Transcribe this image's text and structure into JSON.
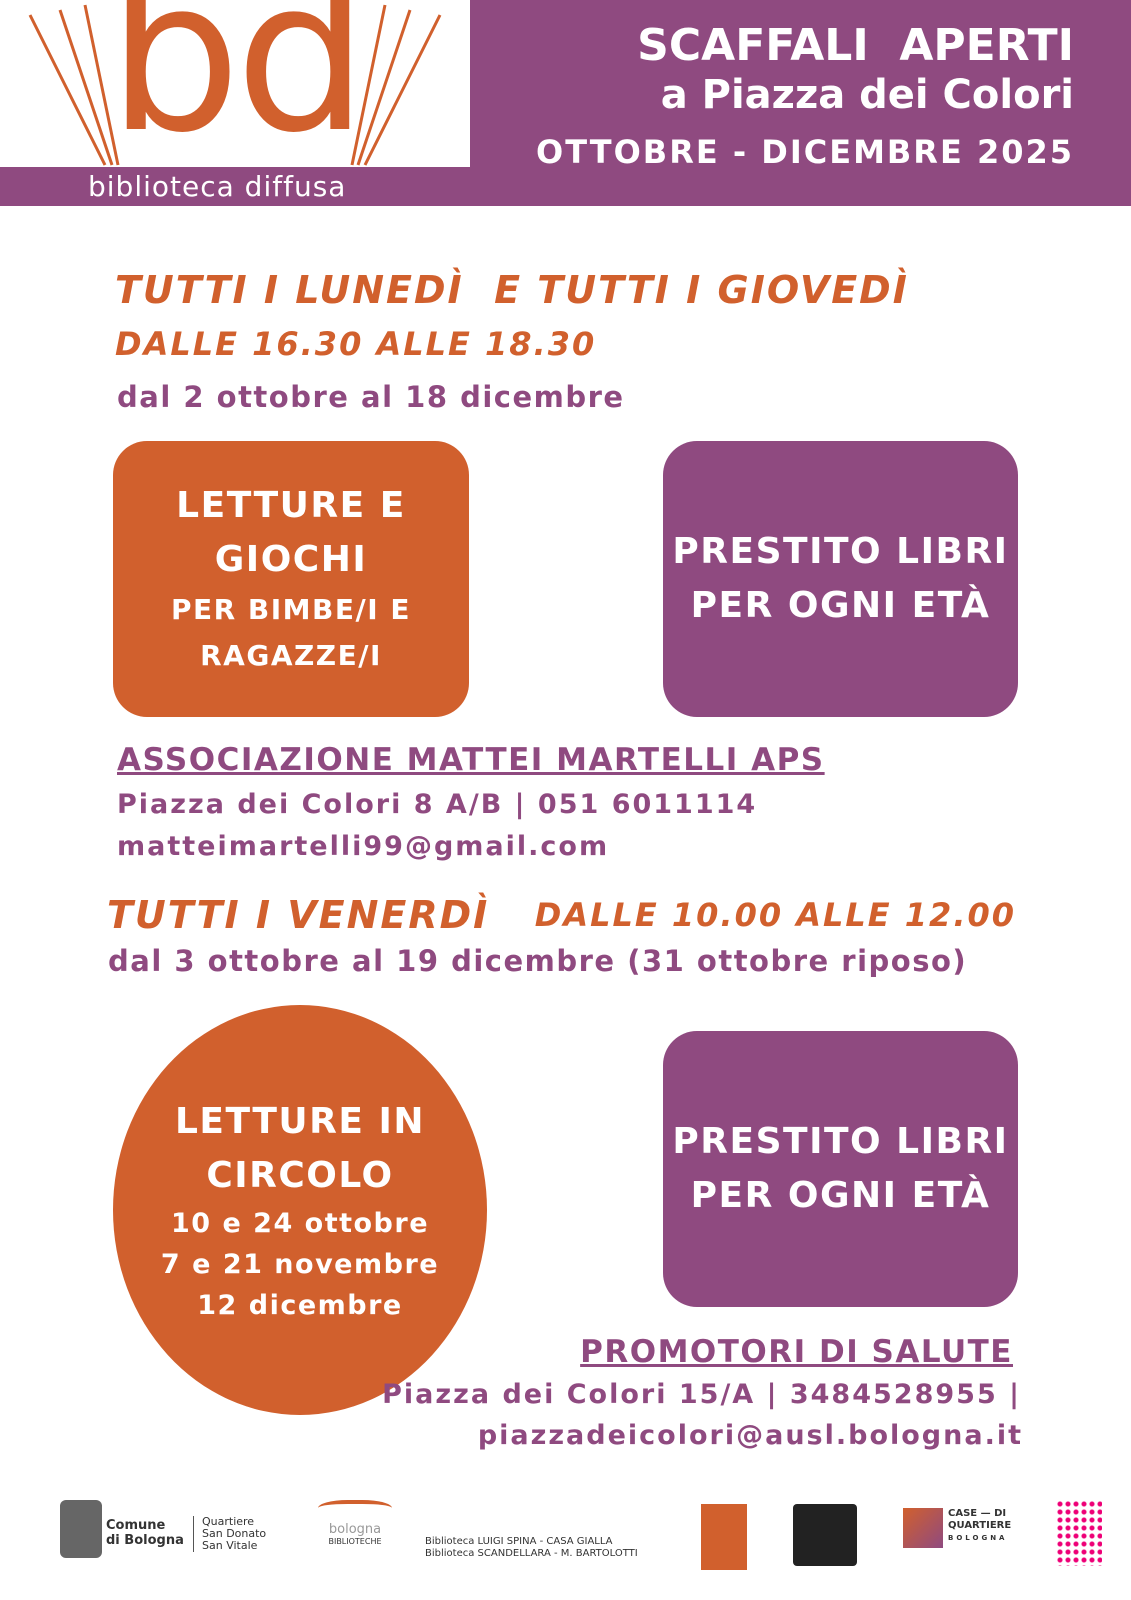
{
  "header": {
    "logo_mark": "bd",
    "logo_text": "biblioteca diffusa",
    "title": "SCAFFALI  APERTI",
    "subtitle": "a Piazza dei Colori",
    "period": "OTTOBRE - DICEMBRE 2025"
  },
  "section1": {
    "days": "TUTTI I LUNEDÌ  E TUTTI I GIOVEDÌ",
    "hours": "DALLE 16.30 ALLE 18.30",
    "dates": "dal 2 ottobre al 18 dicembre",
    "box_left": {
      "title": [
        "LETTURE E",
        "GIOCHI"
      ],
      "subtitle": [
        "PER BIMBE/I E",
        "RAGAZZE/I"
      ]
    },
    "box_right": [
      "PRESTITO LIBRI",
      "PER OGNI ETÀ"
    ],
    "org": {
      "name": "ASSOCIAZIONE MATTEI MARTELLI APS",
      "address": "Piazza dei Colori 8 A/B | 051 6011114",
      "email": "matteimartelli99@gmail.com"
    }
  },
  "section2": {
    "days": "TUTTI I VENERDÌ",
    "hours": "DALLE 10.00 ALLE 12.00",
    "dates": "dal 3 ottobre al 19 dicembre (31 ottobre riposo)",
    "circle": {
      "title": [
        "LETTURE IN",
        "CIRCOLO"
      ],
      "dates": [
        "10 e 24 ottobre",
        "7 e 21 novembre",
        "12 dicembre"
      ]
    },
    "box_right": [
      "PRESTITO LIBRI",
      "PER OGNI ETÀ"
    ],
    "org": {
      "name": "PROMOTORI DI SALUTE",
      "address": "Piazza dei Colori 15/A | 3484528955 |",
      "email": "piazzadeicolori@ausl.bologna.it"
    }
  },
  "footer": {
    "comune": [
      "Comune",
      "di Bologna"
    ],
    "quartiere": [
      "Quartiere",
      "San Donato",
      "San Vitale"
    ],
    "biblioteche": [
      "bologna",
      "BIBLIOTECHE"
    ],
    "libraries": [
      "Biblioteca LUIGI SPINA - CASA GIALLA",
      "Biblioteca SCANDELLARA - M. BARTOLOTTI"
    ],
    "case": [
      "CASE — DI",
      "QUARTIERE",
      "BOLOGNA"
    ]
  }
}
